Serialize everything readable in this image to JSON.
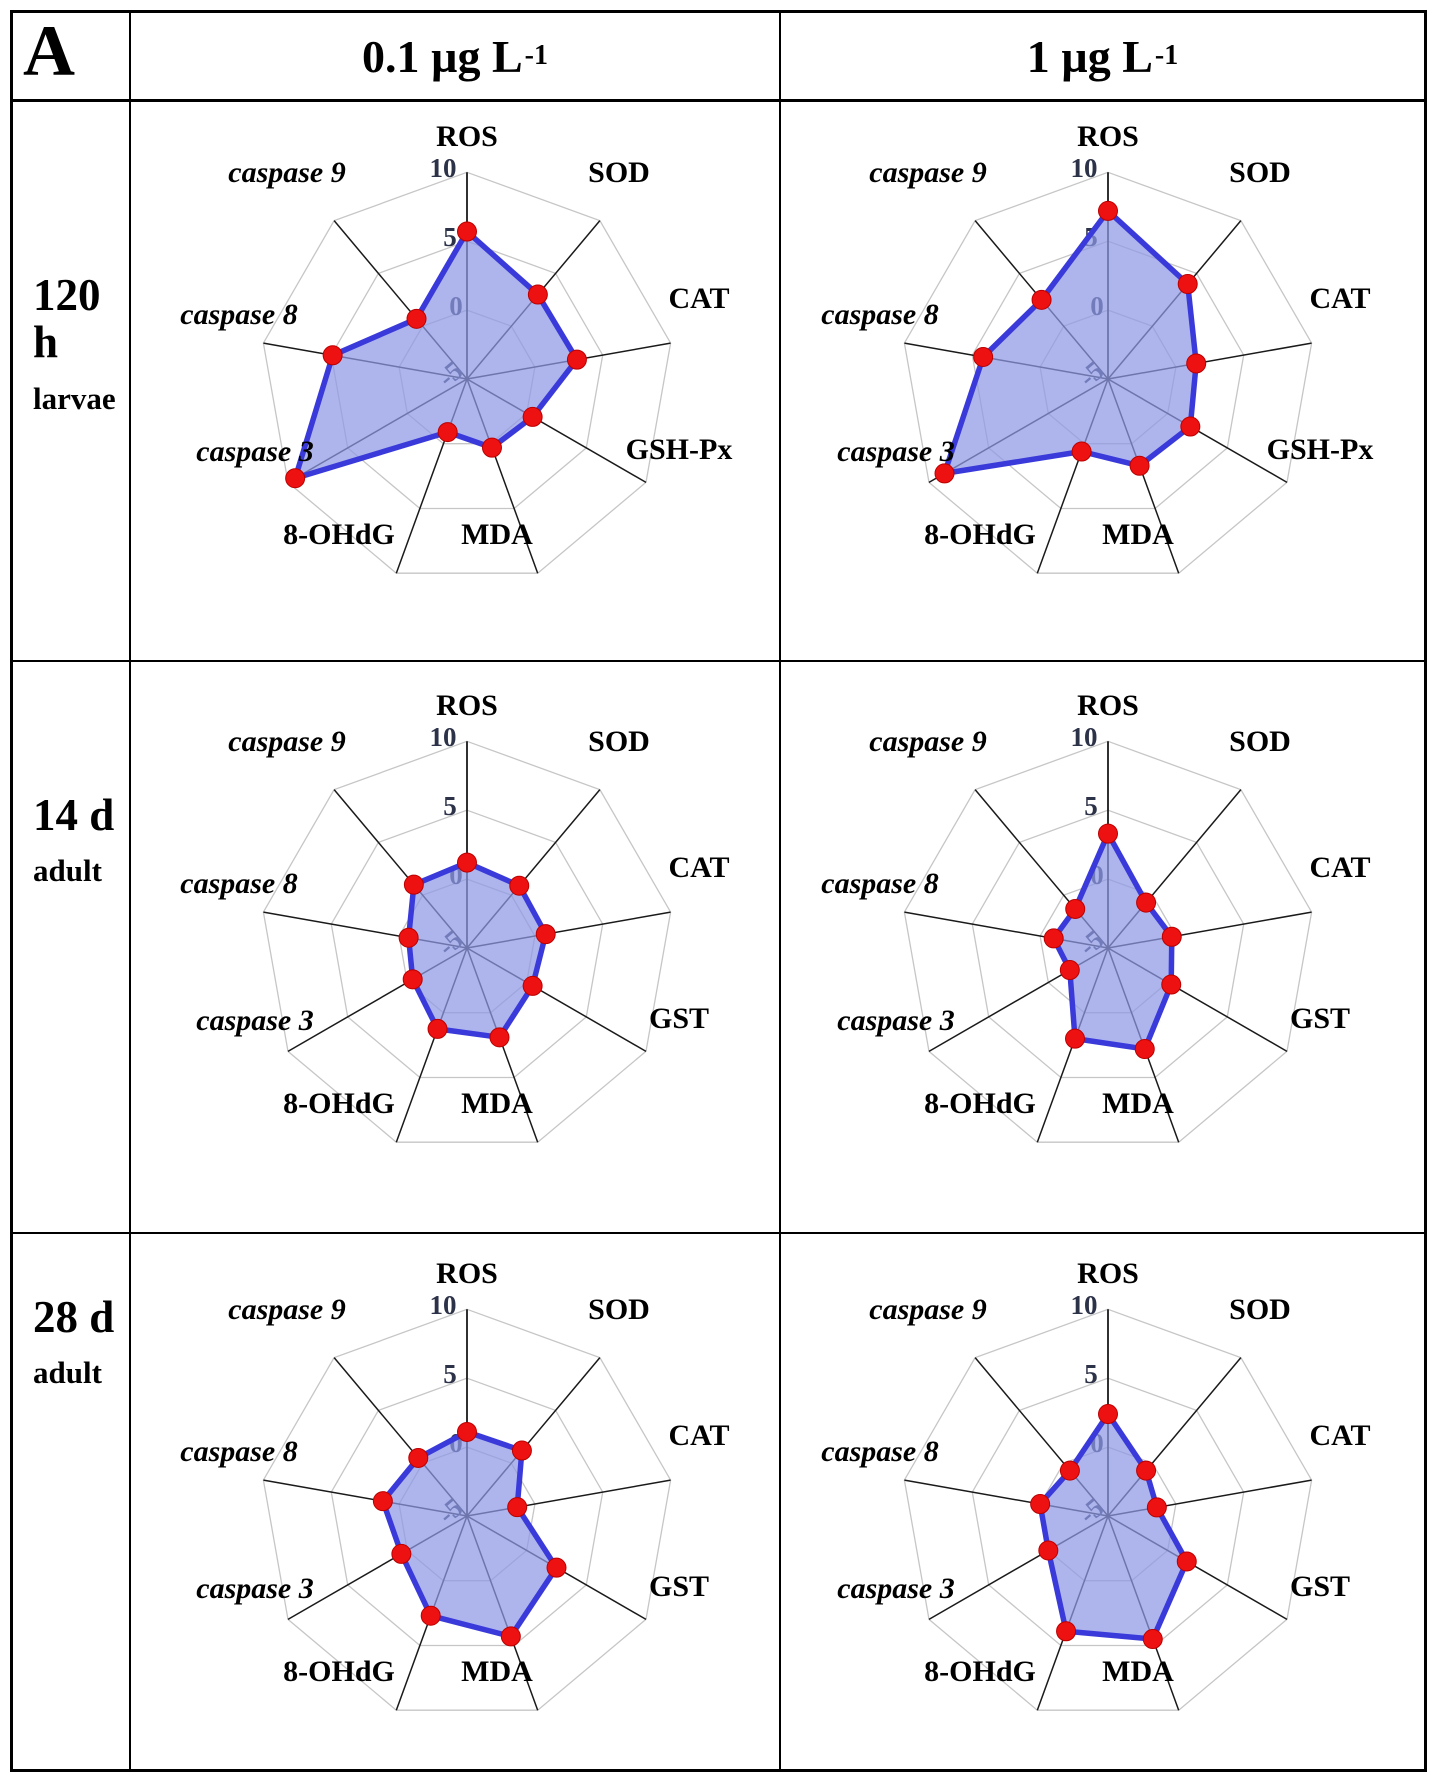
{
  "figure": {
    "panel_label": "A",
    "col_headers": [
      {
        "base": "0.1 µg L",
        "sup": "-1"
      },
      {
        "base": "1 µg L",
        "sup": "-1"
      }
    ],
    "row_headers": [
      {
        "line1": "120 h",
        "line2": "larvae"
      },
      {
        "line1": "14 d",
        "line2": "adult"
      },
      {
        "line1": "28 d",
        "line2": "adult"
      }
    ]
  },
  "radar_style": {
    "fill_color": "#8f98e6",
    "fill_opacity": 0.72,
    "line_color": "#3a3ada",
    "line_width": 5.5,
    "point_color": "#ee1111",
    "point_edge_color": "#bb0000",
    "axis_color": "#1a1a1a",
    "grid_color": "#c6c6c6",
    "tick_text_color": "#2c3248"
  },
  "chart_data": [
    {
      "type": "radar",
      "group": "120 h larvae",
      "dose": "0.1 µg L-1",
      "rmin": -5,
      "rmax": 10,
      "rings": [
        0,
        5,
        10
      ],
      "tick_labels": [
        "10",
        "5",
        "0",
        "-5"
      ],
      "tick_values": [
        10,
        5,
        0,
        -5
      ],
      "axes": [
        "ROS",
        "SOD",
        "CAT",
        "GSH-Px",
        "MDA",
        "8-OHdG",
        "caspase 3",
        "caspase 8",
        "caspase 9"
      ],
      "values": [
        5.7,
        3.0,
        3.1,
        0.5,
        0.3,
        -0.9,
        9.4,
        4.9,
        0.7
      ]
    },
    {
      "type": "radar",
      "group": "120 h larvae",
      "dose": "1 µg L-1",
      "rmin": -5,
      "rmax": 10,
      "rings": [
        0,
        5,
        10
      ],
      "tick_labels": [
        "10",
        "5",
        "0",
        "-5"
      ],
      "tick_values": [
        10,
        5,
        0,
        -5
      ],
      "axes": [
        "ROS",
        "SOD",
        "CAT",
        "GSH-Px",
        "MDA",
        "8-OHdG",
        "caspase 3",
        "caspase 8",
        "caspase 9"
      ],
      "values": [
        7.2,
        4.0,
        1.5,
        1.9,
        1.7,
        0.6,
        8.7,
        4.2,
        2.5
      ]
    },
    {
      "type": "radar",
      "group": "14 d adult",
      "dose": "0.1 µg L-1",
      "rmin": -5,
      "rmax": 10,
      "rings": [
        0,
        5,
        10
      ],
      "tick_labels": [
        "10",
        "5",
        "0",
        "-5"
      ],
      "tick_values": [
        10,
        5,
        0,
        -5
      ],
      "axes": [
        "ROS",
        "SOD",
        "CAT",
        "GST",
        "MDA",
        "8-OHdG",
        "caspase 3",
        "caspase 8",
        "caspase 9"
      ],
      "values": [
        1.2,
        0.9,
        0.8,
        0.5,
        1.9,
        1.25,
        -0.45,
        -0.7,
        1.0
      ]
    },
    {
      "type": "radar",
      "group": "14 d adult",
      "dose": "1 µg L-1",
      "rmin": -5,
      "rmax": 10,
      "rings": [
        0,
        5,
        10
      ],
      "tick_labels": [
        "10",
        "5",
        "0",
        "-5"
      ],
      "tick_values": [
        10,
        5,
        0,
        -5
      ],
      "axes": [
        "ROS",
        "SOD",
        "CAT",
        "GST",
        "MDA",
        "8-OHdG",
        "caspase 3",
        "caspase 8",
        "caspase 9"
      ],
      "values": [
        3.3,
        -0.7,
        -0.3,
        0.3,
        2.8,
        2.0,
        -1.8,
        -1.0,
        -1.3
      ]
    },
    {
      "type": "radar",
      "group": "28 d adult",
      "dose": "0.1 µg L-1",
      "rmin": -5,
      "rmax": 10,
      "rings": [
        0,
        5,
        10
      ],
      "tick_labels": [
        "10",
        "5",
        "0",
        "-5"
      ],
      "tick_values": [
        10,
        5,
        0,
        -5
      ],
      "axes": [
        "ROS",
        "SOD",
        "CAT",
        "GST",
        "MDA",
        "8-OHdG",
        "caspase 3",
        "caspase 8",
        "caspase 9"
      ],
      "values": [
        1.1,
        1.2,
        -1.3,
        2.5,
        4.3,
        2.7,
        0.5,
        1.2,
        0.5
      ]
    },
    {
      "type": "radar",
      "group": "28 d adult",
      "dose": "1 µg L-1",
      "rmin": -5,
      "rmax": 10,
      "rings": [
        0,
        5,
        10
      ],
      "tick_labels": [
        "10",
        "5",
        "0",
        "-5"
      ],
      "tick_values": [
        10,
        5,
        0,
        -5
      ],
      "axes": [
        "ROS",
        "SOD",
        "CAT",
        "GST",
        "MDA",
        "8-OHdG",
        "caspase 3",
        "caspase 8",
        "caspase 9"
      ],
      "values": [
        2.4,
        -0.7,
        -1.4,
        1.6,
        4.5,
        3.9,
        0.0,
        0.0,
        -0.7
      ]
    }
  ]
}
